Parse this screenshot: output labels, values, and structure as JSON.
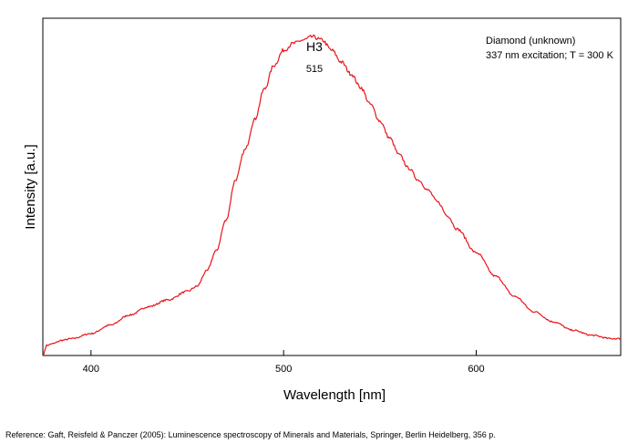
{
  "chart_data": {
    "type": "line",
    "xlabel": "Wavelength [nm]",
    "ylabel": "Intensity [a.u.]",
    "xlim": [
      375,
      675
    ],
    "ylim": [
      0,
      1.0
    ],
    "xticks": [
      400,
      500,
      600
    ],
    "grid": false,
    "peak_name": "H3",
    "peak_wavelength": "515",
    "sample_label": "Diamond (unknown)",
    "conditions_label": "337 nm excitation; T = 300 K",
    "series": [
      {
        "color": "#e8141a",
        "x": [
          375,
          377,
          380,
          385,
          390,
          400,
          410,
          420,
          430,
          440,
          450,
          455,
          460,
          465,
          470,
          475,
          480,
          485,
          490,
          495,
          500,
          505,
          510,
          515,
          520,
          525,
          530,
          535,
          540,
          545,
          550,
          555,
          560,
          565,
          570,
          575,
          580,
          585,
          590,
          600,
          610,
          620,
          630,
          640,
          650,
          660,
          670,
          675
        ],
        "y": [
          0.0,
          0.03,
          0.035,
          0.045,
          0.05,
          0.065,
          0.09,
          0.12,
          0.145,
          0.165,
          0.19,
          0.205,
          0.25,
          0.31,
          0.4,
          0.52,
          0.61,
          0.7,
          0.79,
          0.86,
          0.905,
          0.925,
          0.935,
          0.945,
          0.935,
          0.905,
          0.87,
          0.835,
          0.795,
          0.745,
          0.695,
          0.645,
          0.595,
          0.555,
          0.52,
          0.49,
          0.455,
          0.415,
          0.375,
          0.305,
          0.235,
          0.175,
          0.13,
          0.1,
          0.075,
          0.06,
          0.05,
          0.05
        ]
      }
    ]
  },
  "reference": "Reference: Gaft, Reisfeld & Panczer (2005): Luminescence spectroscopy of Minerals and Materials, Springer, Berlin Heidelberg, 356 p."
}
